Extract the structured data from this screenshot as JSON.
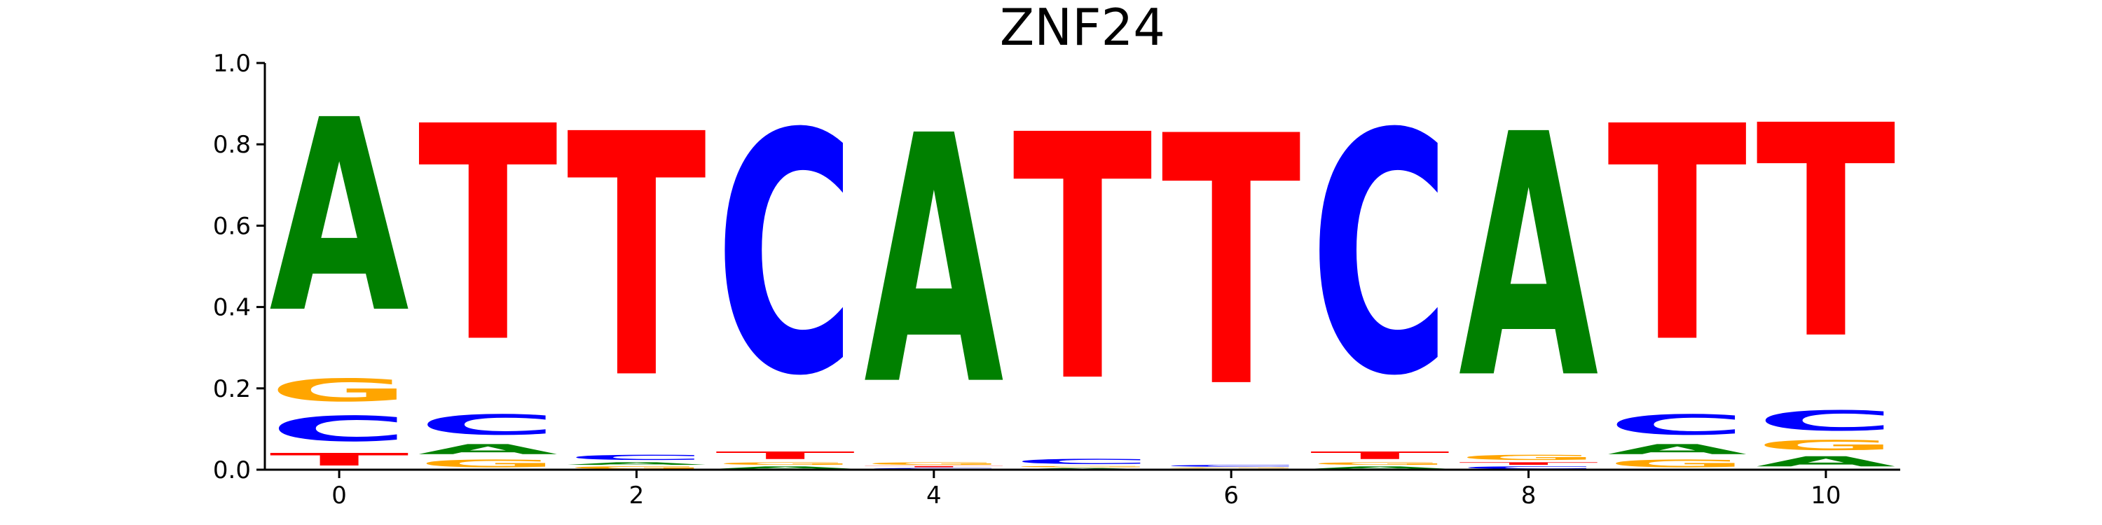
{
  "chart_data": {
    "type": "sequence-logo",
    "title": "ZNF24",
    "xlabel": "",
    "ylabel": "",
    "ylim": [
      0,
      1.0
    ],
    "xlim": [
      -0.5,
      10.5
    ],
    "y_ticks": [
      "0.0",
      "0.2",
      "0.4",
      "0.6",
      "0.8",
      "1.0"
    ],
    "x_ticks": [
      "0",
      "2",
      "4",
      "6",
      "8",
      "10"
    ],
    "colors": {
      "A": "#008000",
      "C": "#0000ff",
      "G": "#ffa500",
      "T": "#ff0000"
    },
    "positions": [
      {
        "position": 0,
        "stack": [
          {
            "letter": "T",
            "value": 0.05
          },
          {
            "letter": "C",
            "value": 0.1
          },
          {
            "letter": "G",
            "value": 0.09
          },
          {
            "letter": "A",
            "value": 0.76
          }
        ]
      },
      {
        "position": 1,
        "stack": [
          {
            "letter": "G",
            "value": 0.03
          },
          {
            "letter": "A",
            "value": 0.04
          },
          {
            "letter": "C",
            "value": 0.08
          },
          {
            "letter": "T",
            "value": 0.85
          }
        ]
      },
      {
        "position": 2,
        "stack": [
          {
            "letter": "G",
            "value": 0.01
          },
          {
            "letter": "A",
            "value": 0.01
          },
          {
            "letter": "C",
            "value": 0.02
          },
          {
            "letter": "T",
            "value": 0.96
          }
        ]
      },
      {
        "position": 3,
        "stack": [
          {
            "letter": "A",
            "value": 0.01
          },
          {
            "letter": "G",
            "value": 0.01
          },
          {
            "letter": "T",
            "value": 0.03
          },
          {
            "letter": "C",
            "value": 0.95
          }
        ]
      },
      {
        "position": 4,
        "stack": [
          {
            "letter": "C",
            "value": 0.005
          },
          {
            "letter": "T",
            "value": 0.005
          },
          {
            "letter": "G",
            "value": 0.01
          },
          {
            "letter": "A",
            "value": 0.98
          }
        ]
      },
      {
        "position": 5,
        "stack": [
          {
            "letter": "A",
            "value": 0.005
          },
          {
            "letter": "G",
            "value": 0.005
          },
          {
            "letter": "C",
            "value": 0.02
          },
          {
            "letter": "T",
            "value": 0.97
          }
        ]
      },
      {
        "position": 6,
        "stack": [
          {
            "letter": "A",
            "value": 0.003
          },
          {
            "letter": "G",
            "value": 0.003
          },
          {
            "letter": "C",
            "value": 0.007
          },
          {
            "letter": "T",
            "value": 0.987
          }
        ]
      },
      {
        "position": 7,
        "stack": [
          {
            "letter": "A",
            "value": 0.01
          },
          {
            "letter": "G",
            "value": 0.01
          },
          {
            "letter": "T",
            "value": 0.03
          },
          {
            "letter": "C",
            "value": 0.95
          }
        ]
      },
      {
        "position": 8,
        "stack": [
          {
            "letter": "C",
            "value": 0.01
          },
          {
            "letter": "T",
            "value": 0.01
          },
          {
            "letter": "G",
            "value": 0.02
          },
          {
            "letter": "A",
            "value": 0.96
          }
        ]
      },
      {
        "position": 9,
        "stack": [
          {
            "letter": "G",
            "value": 0.03
          },
          {
            "letter": "A",
            "value": 0.04
          },
          {
            "letter": "C",
            "value": 0.08
          },
          {
            "letter": "T",
            "value": 0.85
          }
        ]
      },
      {
        "position": 10,
        "stack": [
          {
            "letter": "A",
            "value": 0.04
          },
          {
            "letter": "G",
            "value": 0.04
          },
          {
            "letter": "C",
            "value": 0.08
          },
          {
            "letter": "T",
            "value": 0.84
          }
        ]
      }
    ]
  }
}
